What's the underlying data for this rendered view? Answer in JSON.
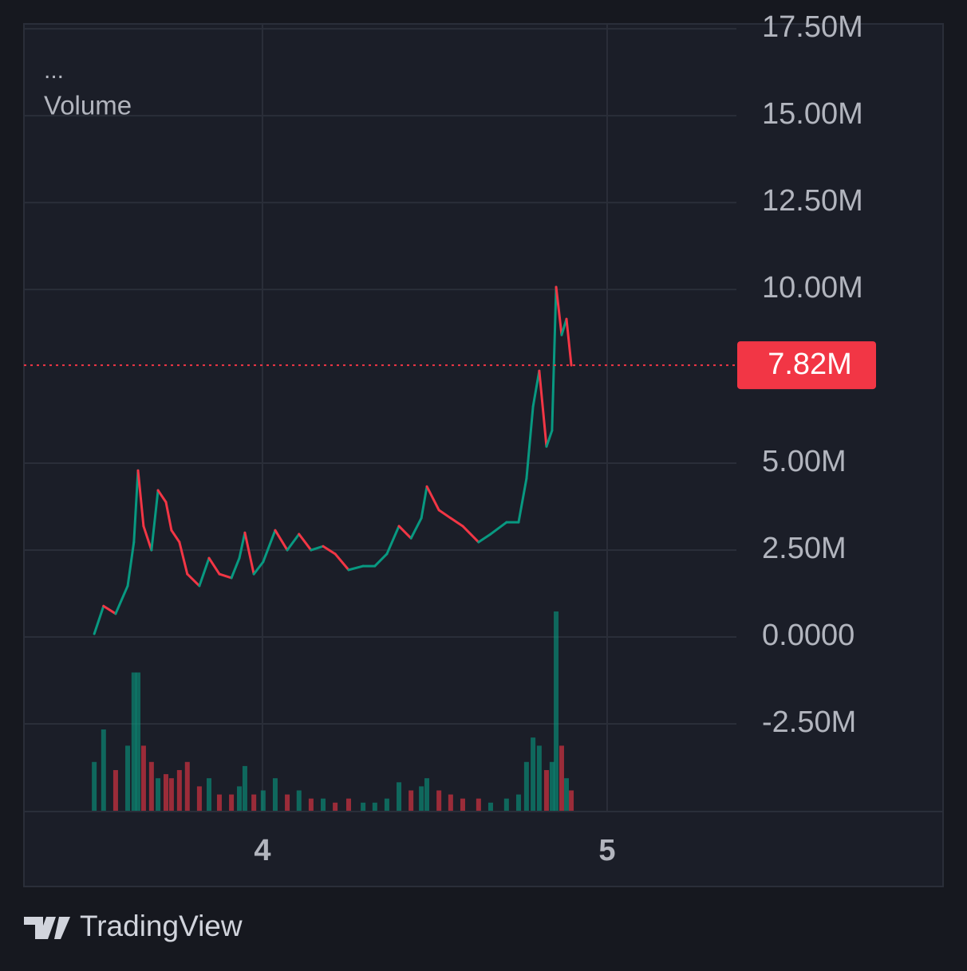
{
  "chart_data": {
    "type": "line",
    "legend_title": "...",
    "volume_label": "Volume",
    "up_color": "#089981",
    "down_color": "#f23645",
    "grid": true,
    "x": [
      3.512,
      3.539,
      3.574,
      3.609,
      3.627,
      3.639,
      3.655,
      3.678,
      3.697,
      3.72,
      3.736,
      3.759,
      3.782,
      3.817,
      3.845,
      3.875,
      3.91,
      3.933,
      3.949,
      3.975,
      4.002,
      4.037,
      4.072,
      4.106,
      4.141,
      4.176,
      4.211,
      4.25,
      4.292,
      4.326,
      4.361,
      4.396,
      4.431,
      4.461,
      4.477,
      4.512,
      4.546,
      4.581,
      4.627,
      4.662,
      4.708,
      4.743,
      4.766,
      4.785,
      4.803,
      4.824,
      4.84,
      4.852,
      4.868,
      4.882,
      4.896
    ],
    "series": [
      {
        "name": "Price",
        "values": [
          90000,
          890000,
          670000,
          1470000,
          2730000,
          4790000,
          3190000,
          2500000,
          4220000,
          3880000,
          3070000,
          2730000,
          1810000,
          1470000,
          2270000,
          1810000,
          1700000,
          2270000,
          3000000,
          1810000,
          2160000,
          3070000,
          2500000,
          2960000,
          2500000,
          2610000,
          2390000,
          1930000,
          2040000,
          2040000,
          2390000,
          3190000,
          2840000,
          3420000,
          4330000,
          3650000,
          3420000,
          3190000,
          2730000,
          2960000,
          3300000,
          3300000,
          4560000,
          6630000,
          7660000,
          5480000,
          5940000,
          10070000,
          8690000,
          9150000,
          7820000
        ]
      },
      {
        "name": "Volume",
        "values": [
          60,
          100,
          50,
          80,
          170,
          170,
          80,
          60,
          40,
          45,
          40,
          50,
          60,
          30,
          40,
          20,
          20,
          30,
          55,
          20,
          25,
          40,
          20,
          25,
          15,
          15,
          10,
          15,
          10,
          10,
          15,
          35,
          25,
          30,
          40,
          25,
          20,
          15,
          15,
          10,
          15,
          20,
          60,
          90,
          80,
          50,
          60,
          245,
          80,
          40,
          25
        ]
      }
    ],
    "xlim": [
      3.308,
      5.375
    ],
    "xticks": [
      4,
      5
    ],
    "ylim": [
      -5000000,
      17640000
    ],
    "yticks": [
      {
        "value": 17500000,
        "label": "17.50M"
      },
      {
        "value": 15000000,
        "label": "15.00M"
      },
      {
        "value": 12500000,
        "label": "12.50M"
      },
      {
        "value": 10000000,
        "label": "10.00M"
      },
      {
        "value": 5000000,
        "label": "5.00M"
      },
      {
        "value": 2500000,
        "label": "2.50M"
      },
      {
        "value": 0,
        "label": "0.0000"
      },
      {
        "value": -2500000,
        "label": "-2.50M"
      }
    ],
    "last_price": {
      "value": 7820000,
      "label": "7.82M"
    },
    "branding": "TradingView"
  }
}
